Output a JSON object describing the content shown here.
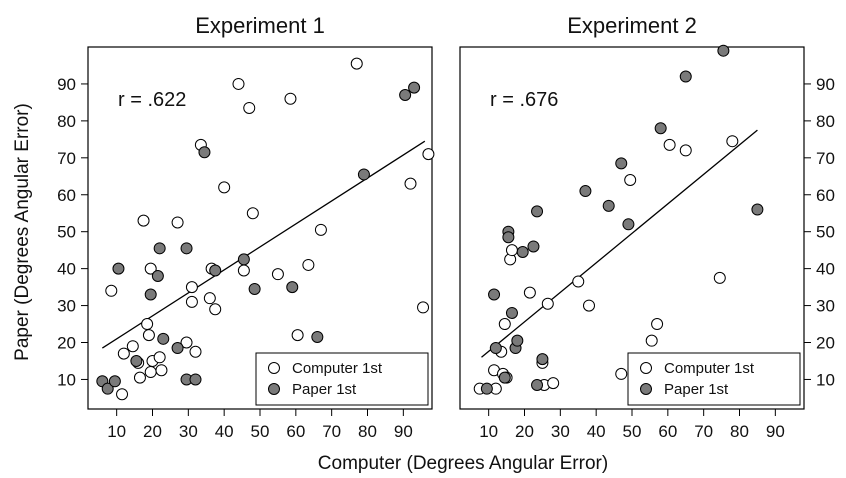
{
  "figure": {
    "x_axis_title": "Computer (Degrees Angular Error)",
    "y_axis_title": "Paper (Degrees Angular Error)"
  },
  "colors": {
    "computer_first_fill": "#ffffff",
    "paper_first_fill": "#7a7a7a",
    "marker_stroke": "#000000",
    "fit_line": "#000000"
  },
  "chart_data": [
    {
      "type": "scatter",
      "title": "Experiment 1",
      "annotation": "r = .622",
      "xlabel": "Computer (Degrees Angular Error)",
      "ylabel": "Paper (Degrees Angular Error)",
      "xlim": [
        2,
        98
      ],
      "ylim": [
        2,
        100
      ],
      "xticks": [
        10,
        20,
        30,
        40,
        50,
        60,
        70,
        80,
        90
      ],
      "yticks": [
        10,
        20,
        30,
        40,
        50,
        60,
        70,
        80,
        90
      ],
      "y_axis_side": "left",
      "legend_position": "bottom-right",
      "grid": false,
      "fit_line": {
        "x": [
          6,
          96
        ],
        "y": [
          18.5,
          74.5
        ]
      },
      "series": [
        {
          "name": "Computer 1st",
          "marker": "open-circle",
          "points": [
            [
              8.5,
              34
            ],
            [
              11.5,
              6
            ],
            [
              12,
              17
            ],
            [
              14.5,
              19
            ],
            [
              16,
              14.5
            ],
            [
              16.5,
              10.5
            ],
            [
              17.5,
              53
            ],
            [
              18.5,
              25
            ],
            [
              19,
              22
            ],
            [
              19.5,
              40
            ],
            [
              19.5,
              12
            ],
            [
              20,
              15
            ],
            [
              22,
              16
            ],
            [
              22.5,
              12.5
            ],
            [
              27,
              52.5
            ],
            [
              29.5,
              20
            ],
            [
              31,
              31
            ],
            [
              31,
              35
            ],
            [
              32,
              17.5
            ],
            [
              33.5,
              73.5
            ],
            [
              36,
              32
            ],
            [
              36.5,
              40
            ],
            [
              37.5,
              29
            ],
            [
              40,
              62
            ],
            [
              44,
              90
            ],
            [
              45.5,
              39.5
            ],
            [
              47,
              83.5
            ],
            [
              48,
              55
            ],
            [
              55,
              38.5
            ],
            [
              58.5,
              86
            ],
            [
              60.5,
              22
            ],
            [
              63.5,
              41
            ],
            [
              67,
              50.5
            ],
            [
              77,
              95.5
            ],
            [
              92,
              63
            ],
            [
              95.5,
              29.5
            ],
            [
              97,
              71
            ]
          ]
        },
        {
          "name": "Paper 1st",
          "marker": "filled-circle",
          "points": [
            [
              6,
              9.5
            ],
            [
              7.5,
              7.5
            ],
            [
              9.5,
              9.5
            ],
            [
              10.5,
              40
            ],
            [
              15.5,
              15
            ],
            [
              19.5,
              33
            ],
            [
              21.5,
              38
            ],
            [
              22,
              45.5
            ],
            [
              23,
              21
            ],
            [
              27,
              18.5
            ],
            [
              29.5,
              10
            ],
            [
              29.5,
              45.5
            ],
            [
              32,
              10
            ],
            [
              34.5,
              71.5
            ],
            [
              37.5,
              39.5
            ],
            [
              45.5,
              42.5
            ],
            [
              48.5,
              34.5
            ],
            [
              59,
              35
            ],
            [
              66,
              21.5
            ],
            [
              79,
              65.5
            ],
            [
              90.5,
              87
            ],
            [
              93,
              89
            ]
          ]
        }
      ]
    },
    {
      "type": "scatter",
      "title": "Experiment 2",
      "annotation": "r = .676",
      "xlabel": "Computer (Degrees Angular Error)",
      "ylabel": "Paper (Degrees Angular Error)",
      "xlim": [
        2,
        98
      ],
      "ylim": [
        2,
        100
      ],
      "xticks": [
        10,
        20,
        30,
        40,
        50,
        60,
        70,
        80,
        90
      ],
      "yticks": [
        10,
        20,
        30,
        40,
        50,
        60,
        70,
        80,
        90
      ],
      "y_axis_side": "right",
      "legend_position": "bottom-right",
      "grid": false,
      "fit_line": {
        "x": [
          8,
          85
        ],
        "y": [
          16,
          77.5
        ]
      },
      "series": [
        {
          "name": "Computer 1st",
          "marker": "open-circle",
          "points": [
            [
              7.5,
              7.5
            ],
            [
              11.5,
              12.5
            ],
            [
              12,
              7.5
            ],
            [
              13.5,
              17.5
            ],
            [
              14,
              11.5
            ],
            [
              14.5,
              25
            ],
            [
              15,
              10.5
            ],
            [
              16,
              42.5
            ],
            [
              16.5,
              45
            ],
            [
              21.5,
              33.5
            ],
            [
              25,
              14.5
            ],
            [
              25.5,
              8.5
            ],
            [
              26.5,
              30.5
            ],
            [
              28,
              9
            ],
            [
              35,
              36.5
            ],
            [
              38,
              30
            ],
            [
              47,
              11.5
            ],
            [
              49.5,
              64
            ],
            [
              55.5,
              20.5
            ],
            [
              57,
              25
            ],
            [
              60.5,
              73.5
            ],
            [
              65,
              72
            ],
            [
              74.5,
              37.5
            ],
            [
              78,
              74.5
            ]
          ]
        },
        {
          "name": "Paper 1st",
          "marker": "filled-circle",
          "points": [
            [
              9.5,
              7.5
            ],
            [
              11.5,
              33
            ],
            [
              12,
              18.5
            ],
            [
              14.5,
              10.5
            ],
            [
              15.5,
              50
            ],
            [
              15.5,
              48.5
            ],
            [
              16.5,
              28
            ],
            [
              17.5,
              18.5
            ],
            [
              18,
              20.5
            ],
            [
              19.5,
              44.5
            ],
            [
              22.5,
              46
            ],
            [
              23.5,
              55.5
            ],
            [
              23.5,
              8.5
            ],
            [
              25,
              15.5
            ],
            [
              37,
              61
            ],
            [
              43.5,
              57
            ],
            [
              47,
              68.5
            ],
            [
              49,
              52
            ],
            [
              58,
              78
            ],
            [
              65,
              92
            ],
            [
              75.5,
              99
            ],
            [
              85,
              56
            ]
          ]
        }
      ]
    }
  ]
}
